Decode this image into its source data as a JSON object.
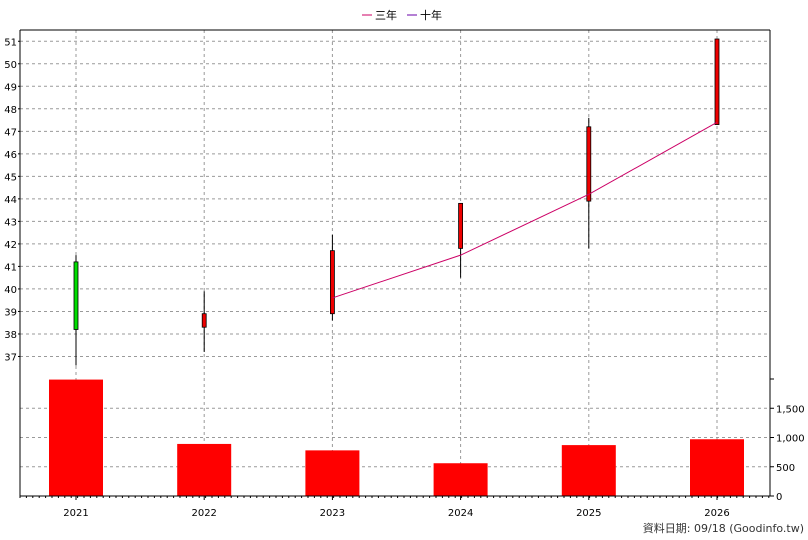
{
  "chart_data": {
    "type": "candlestick",
    "legend": {
      "placement": "top-center",
      "entries": [
        {
          "label": "三年",
          "color": "#cc0066"
        },
        {
          "label": "十年",
          "color": "#6a00a8"
        }
      ]
    },
    "categories": [
      "2021",
      "2022",
      "2023",
      "2024",
      "2025",
      "2026"
    ],
    "price": {
      "ylim": [
        36,
        51.5
      ],
      "ticks": [
        37,
        38,
        39,
        40,
        41,
        42,
        43,
        44,
        45,
        46,
        47,
        48,
        49,
        50,
        51
      ],
      "candles": [
        {
          "x": "2021",
          "open": 38.2,
          "close": 41.2,
          "high": 41.5,
          "low": 36.6,
          "color": "#00dd00"
        },
        {
          "x": "2022",
          "open": 38.9,
          "close": 38.3,
          "high": 39.9,
          "low": 37.2,
          "color": "#ee0000"
        },
        {
          "x": "2023",
          "open": 41.7,
          "close": 38.9,
          "high": 42.4,
          "low": 38.6,
          "color": "#ee0000"
        },
        {
          "x": "2024",
          "open": 43.8,
          "close": 41.8,
          "high": 43.8,
          "low": 40.5,
          "color": "#ee0000"
        },
        {
          "x": "2025",
          "open": 47.2,
          "close": 43.9,
          "high": 47.6,
          "low": 41.8,
          "color": "#ee0000"
        },
        {
          "x": "2026",
          "open": 51.1,
          "close": 47.3,
          "high": 51.1,
          "low": 47.3,
          "color": "#ee0000"
        }
      ],
      "lines": [
        {
          "name": "三年",
          "color": "#cc0066",
          "points": [
            {
              "x": "2023",
              "y": 39.6
            },
            {
              "x": "2024",
              "y": 41.5
            },
            {
              "x": "2025",
              "y": 44.2
            },
            {
              "x": "2026",
              "y": 47.4
            }
          ]
        }
      ]
    },
    "volume": {
      "ylim": [
        0,
        2000
      ],
      "ticks": [
        0,
        500,
        1000,
        1500
      ],
      "tick_labels": [
        "0",
        "500",
        "1,000",
        "1,500"
      ],
      "values": [
        1990,
        890,
        780,
        560,
        870,
        970
      ],
      "color": "#ff0000"
    },
    "grid": true,
    "footer": "資料日期: 09/18  (Goodinfo.tw)"
  }
}
